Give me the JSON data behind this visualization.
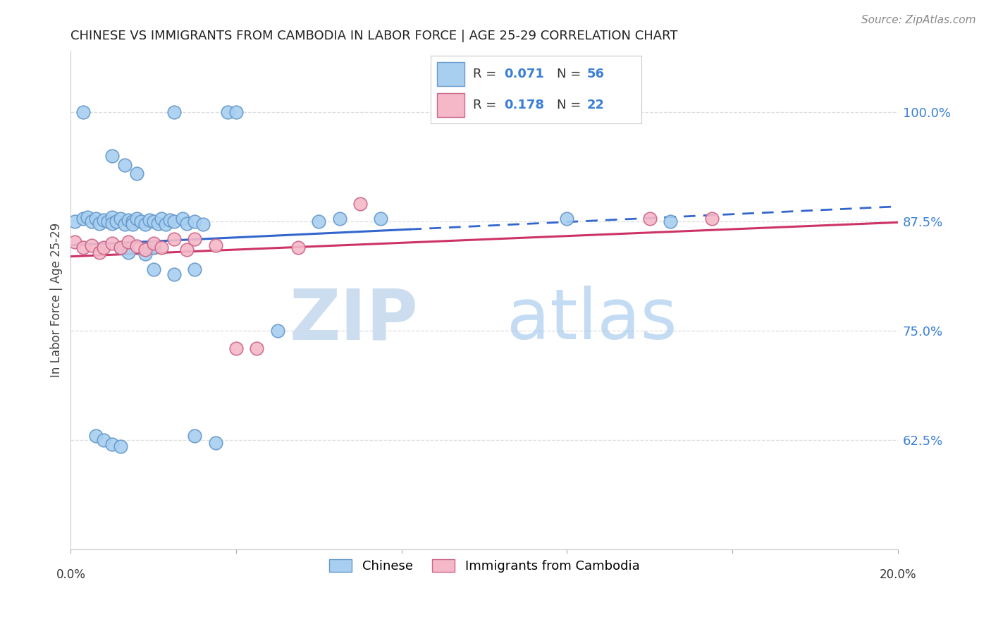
{
  "title": "CHINESE VS IMMIGRANTS FROM CAMBODIA IN LABOR FORCE | AGE 25-29 CORRELATION CHART",
  "source": "Source: ZipAtlas.com",
  "ylabel": "In Labor Force | Age 25-29",
  "xlim": [
    0.0,
    0.2
  ],
  "ylim": [
    0.5,
    1.07
  ],
  "watermark_zip": "ZIP",
  "watermark_atlas": "atlas",
  "legend_R1": "0.071",
  "legend_N1": "56",
  "legend_R2": "0.178",
  "legend_N2": "22",
  "chinese_color": "#a8cff0",
  "cambodia_color": "#f5b8c8",
  "blue_line_color": "#3366cc",
  "pink_line_color": "#cc3366",
  "blue_value_color": "#3a7fd5",
  "grid_color": "#dddddd",
  "ytick_vals": [
    0.625,
    0.75,
    0.875,
    1.0
  ],
  "ytick_labels": [
    "62.5%",
    "75.0%",
    "87.5%",
    "100.0%"
  ],
  "chinese_x": [
    0.001,
    0.003,
    0.004,
    0.005,
    0.006,
    0.007,
    0.008,
    0.009,
    0.01,
    0.01,
    0.011,
    0.012,
    0.013,
    0.014,
    0.015,
    0.015,
    0.016,
    0.017,
    0.018,
    0.019,
    0.02,
    0.021,
    0.022,
    0.023,
    0.024,
    0.025,
    0.027,
    0.028,
    0.03,
    0.032,
    0.003,
    0.025,
    0.038,
    0.04,
    0.01,
    0.013,
    0.016,
    0.012,
    0.014,
    0.018,
    0.02,
    0.02,
    0.025,
    0.03,
    0.006,
    0.008,
    0.01,
    0.012,
    0.03,
    0.035,
    0.05,
    0.06,
    0.065,
    0.075,
    0.12,
    0.145
  ],
  "chinese_y": [
    0.875,
    0.878,
    0.88,
    0.875,
    0.878,
    0.873,
    0.877,
    0.875,
    0.88,
    0.873,
    0.875,
    0.878,
    0.872,
    0.877,
    0.875,
    0.872,
    0.878,
    0.875,
    0.872,
    0.877,
    0.875,
    0.873,
    0.878,
    0.872,
    0.877,
    0.875,
    0.878,
    0.873,
    0.875,
    0.872,
    1.0,
    1.0,
    1.0,
    1.0,
    0.95,
    0.94,
    0.93,
    0.845,
    0.84,
    0.838,
    0.845,
    0.82,
    0.815,
    0.82,
    0.63,
    0.625,
    0.62,
    0.618,
    0.63,
    0.622,
    0.75,
    0.875,
    0.878,
    0.878,
    0.878,
    0.875
  ],
  "cambodia_x": [
    0.001,
    0.003,
    0.005,
    0.007,
    0.008,
    0.01,
    0.012,
    0.014,
    0.016,
    0.018,
    0.02,
    0.022,
    0.025,
    0.028,
    0.03,
    0.035,
    0.04,
    0.045,
    0.055,
    0.07,
    0.14,
    0.155
  ],
  "cambodia_y": [
    0.852,
    0.845,
    0.848,
    0.84,
    0.845,
    0.85,
    0.845,
    0.852,
    0.847,
    0.843,
    0.85,
    0.845,
    0.855,
    0.843,
    0.855,
    0.848,
    0.73,
    0.73,
    0.845,
    0.895,
    0.878,
    0.878
  ]
}
